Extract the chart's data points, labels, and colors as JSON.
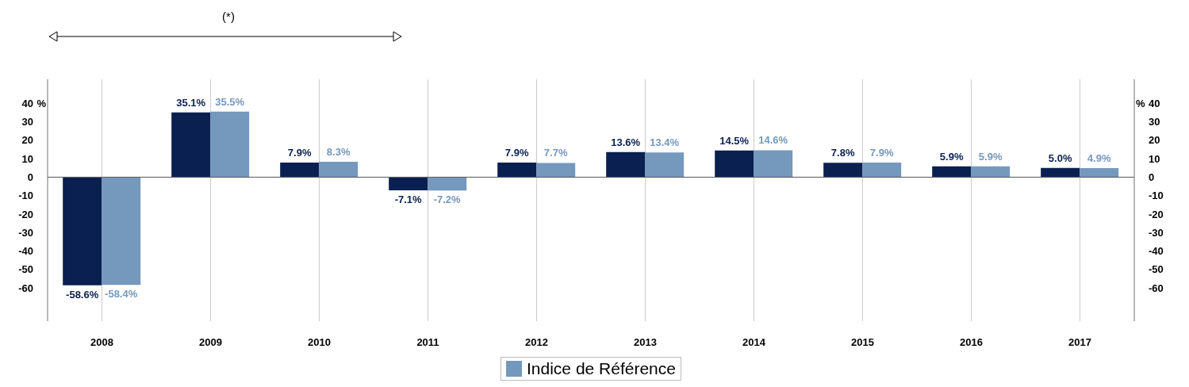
{
  "chart_data": {
    "type": "bar",
    "categories": [
      "2008",
      "2009",
      "2010",
      "2011",
      "2012",
      "2013",
      "2014",
      "2015",
      "2016",
      "2017"
    ],
    "series": [
      {
        "color": "#0a2050",
        "values": [
          -58.6,
          35.1,
          7.9,
          -7.1,
          7.9,
          13.6,
          14.5,
          7.8,
          5.9,
          5.0
        ],
        "value_labels": [
          "-58.6%",
          "35.1%",
          "7.9%",
          "-7.1%",
          "7.9%",
          "13.6%",
          "14.5%",
          "7.8%",
          "5.9%",
          "5.0%"
        ]
      },
      {
        "name": "Indice de Référence",
        "color": "#7598bd",
        "values": [
          -58.4,
          35.5,
          8.3,
          -7.2,
          7.7,
          13.4,
          14.6,
          7.9,
          5.9,
          4.9
        ],
        "value_labels": [
          "-58.4%",
          "35.5%",
          "8.3%",
          "-7.2%",
          "7.7%",
          "13.4%",
          "14.6%",
          "7.9%",
          "5.9%",
          "4.9%"
        ]
      }
    ],
    "ylabel": "%",
    "y2label": "%",
    "ylim": [
      -78,
      53
    ],
    "yticks": [
      -60,
      -50,
      -40,
      -30,
      -20,
      -10,
      0,
      10,
      20,
      30,
      40
    ],
    "y2lim": [
      -78,
      53
    ],
    "y2ticks": [
      -60,
      -50,
      -40,
      -30,
      -20,
      -10,
      0,
      10,
      20,
      30,
      40
    ],
    "ref_lines": [
      {
        "axis": "y",
        "value": 0,
        "color": "#555555"
      }
    ],
    "annotations": [
      "(*)"
    ],
    "grid": "x",
    "legend": "bottom"
  }
}
